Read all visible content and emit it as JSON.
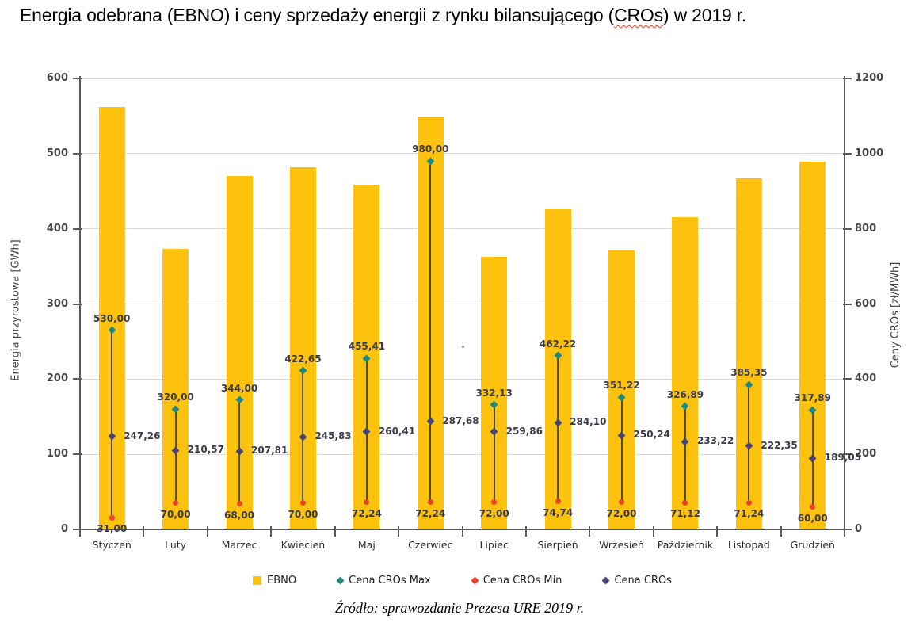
{
  "title": {
    "part1": "Energia odebrana (EBNO) i ceny sprzedaży energii z rynku bilansującego (",
    "underlined": "CROs",
    "part2": ") w 2019 r."
  },
  "footer": "Źródło: sprawozdanie Prezesa URE 2019 r.",
  "chart_data": {
    "type": "bar",
    "categories": [
      "Styczeń",
      "Luty",
      "Marzec",
      "Kwiecień",
      "Maj",
      "Czerwiec",
      "Lipiec",
      "Sierpień",
      "Wrzesień",
      "Październik",
      "Listopad",
      "Grudzień"
    ],
    "series": [
      {
        "name": "EBNO",
        "kind": "bar",
        "axis": "left",
        "color": "#fcc20d",
        "values": [
          562,
          373,
          470,
          482,
          459,
          549,
          363,
          426,
          371,
          415,
          467,
          489
        ]
      },
      {
        "name": "Cena CROs Max",
        "kind": "point",
        "axis": "right",
        "color": "#1c8a7e",
        "show_labels": true,
        "values": [
          530.0,
          320.0,
          344.0,
          422.65,
          455.41,
          980.0,
          332.13,
          462.22,
          351.22,
          326.89,
          385.35,
          317.89
        ]
      },
      {
        "name": "Cena CROs Min",
        "kind": "point",
        "axis": "right",
        "color": "#e8432b",
        "show_labels": true,
        "values": [
          31.0,
          70.0,
          68.0,
          70.0,
          72.24,
          72.24,
          72.0,
          74.74,
          72.0,
          71.12,
          71.24,
          60.0
        ]
      },
      {
        "name": "Cena CROs",
        "kind": "point",
        "axis": "right",
        "color": "#44447a",
        "show_labels": true,
        "values": [
          247.26,
          210.57,
          207.81,
          245.83,
          260.41,
          287.68,
          259.86,
          284.1,
          250.24,
          233.22,
          222.35,
          189.05
        ]
      }
    ],
    "left_axis": {
      "label": "Energia przyrostowa [GWh]",
      "min": 0,
      "max": 600,
      "step": 100,
      "ticks": [
        0,
        100,
        200,
        300,
        400,
        500,
        600
      ]
    },
    "right_axis": {
      "label": "Ceny CROs [zł/MWh]",
      "min": 0,
      "max": 1200,
      "step": 200,
      "ticks": [
        0,
        200,
        400,
        600,
        800,
        1000,
        1200
      ]
    },
    "legend": [
      {
        "label": "EBNO",
        "marker": "square",
        "color": "#fcc20d"
      },
      {
        "label": "Cena CROs Max",
        "marker": "diamond",
        "color": "#1c8a7e"
      },
      {
        "label": "Cena CROs Min",
        "marker": "diamond",
        "color": "#e8432b"
      },
      {
        "label": "Cena CROs",
        "marker": "diamond",
        "color": "#44447a"
      }
    ],
    "grid": true,
    "legend_position": "bottom",
    "decimal_separator": ","
  }
}
